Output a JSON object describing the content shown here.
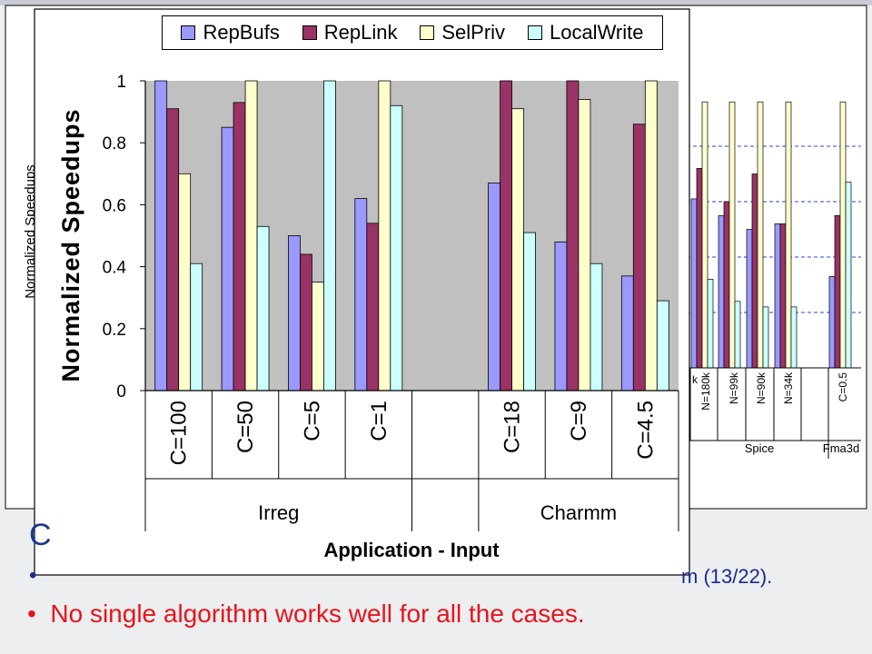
{
  "slide": {
    "heading_fragment": "C",
    "bullet_1_tail": "m (13/22).",
    "bullet_2": "No single algorithm works well for all the cases.",
    "bullet_symbol": "•"
  },
  "colors": {
    "RepBufs": "#9999ff",
    "RepLink": "#993366",
    "SelPriv": "#ffffcc",
    "LocalWrite": "#ccffff",
    "plot_bg": "#c0c0c0",
    "bullet_red": "#e8141b",
    "bullet_blue": "#1c2a8c"
  },
  "chart_data": [
    {
      "type": "bar",
      "title": "",
      "ylabel": "Normalized Speedups",
      "xlabel": "Application - Input",
      "ylim": [
        0,
        1
      ],
      "yticks": [
        "0",
        "0.2",
        "0.4",
        "0.6",
        "0.8",
        "1"
      ],
      "legend_position": "top",
      "grid": false,
      "categories": [
        "C=100",
        "C=50",
        "C=5",
        "C=1",
        "",
        "C=18",
        "C=9",
        "C=4.5"
      ],
      "groups": [
        {
          "name": "Irreg",
          "categories": [
            "C=100",
            "C=50",
            "C=5",
            "C=1"
          ]
        },
        {
          "name": "Charmm",
          "categories": [
            "C=18",
            "C=9",
            "C=4.5"
          ]
        }
      ],
      "series": [
        {
          "name": "RepBufs",
          "values": [
            1.0,
            0.85,
            0.5,
            0.62,
            null,
            0.67,
            0.48,
            0.37
          ]
        },
        {
          "name": "RepLink",
          "values": [
            0.91,
            0.93,
            0.44,
            0.54,
            null,
            1.0,
            1.0,
            0.86
          ]
        },
        {
          "name": "SelPriv",
          "values": [
            0.7,
            1.0,
            0.35,
            1.0,
            null,
            0.91,
            0.94,
            1.0
          ]
        },
        {
          "name": "LocalWrite",
          "values": [
            0.41,
            0.53,
            1.0,
            0.92,
            null,
            0.51,
            0.41,
            0.29
          ]
        }
      ]
    },
    {
      "type": "bar",
      "title": "",
      "ylabel": "Normalized Speedups",
      "xlabel": "",
      "grid": true,
      "categories": [
        "k",
        "N=180k",
        "N=99k",
        "N=90k",
        "N=34k",
        "",
        "C=0.5"
      ],
      "groups": [
        {
          "name": "Spice",
          "categories": [
            "N=180k",
            "N=99k",
            "N=90k",
            "N=34k"
          ]
        },
        {
          "name": "Fma3d",
          "categories": [
            "C=0.5"
          ]
        }
      ],
      "series": [
        {
          "name": "RepBufs",
          "values": [
            null,
            0.61,
            0.55,
            0.5,
            0.52,
            null,
            0.33
          ]
        },
        {
          "name": "RepLink",
          "values": [
            null,
            0.72,
            0.6,
            0.7,
            0.52,
            null,
            0.55
          ]
        },
        {
          "name": "SelPriv",
          "values": [
            null,
            0.96,
            0.96,
            0.96,
            0.96,
            null,
            0.96
          ]
        },
        {
          "name": "LocalWrite",
          "values": [
            null,
            0.32,
            0.24,
            0.22,
            0.22,
            null,
            0.67
          ]
        }
      ]
    }
  ]
}
